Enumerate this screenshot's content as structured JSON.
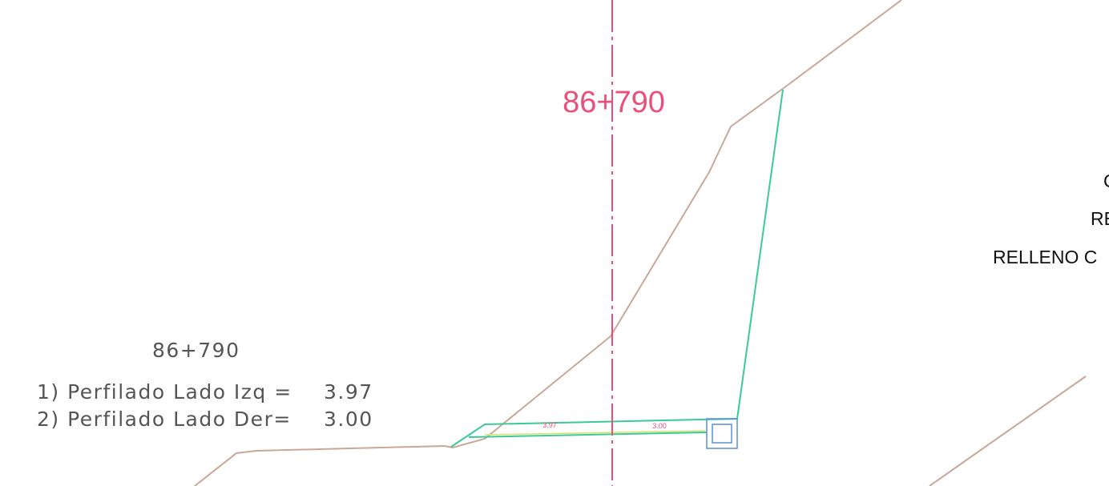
{
  "station": "86+790",
  "info": {
    "title": "86+790",
    "rows": [
      {
        "label": "1) Perfilado Lado Izq =",
        "value": "3.97"
      },
      {
        "label": "2) Perfilado Lado Der=",
        "value": "3.00"
      }
    ]
  },
  "dimensions": [
    "3.97",
    "3.00"
  ],
  "legend": [
    "C",
    "RE",
    "RELLENO C"
  ]
}
